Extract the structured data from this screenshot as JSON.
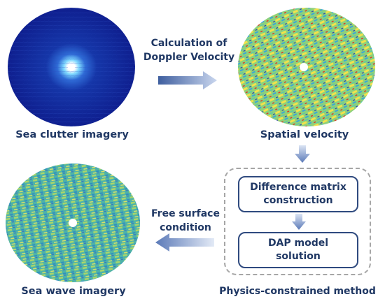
{
  "panels": {
    "sea_clutter": {
      "caption": "Sea clutter imagery"
    },
    "spatial_velocity": {
      "caption": "Spatial velocity"
    },
    "sea_wave": {
      "caption": "Sea wave imagery"
    }
  },
  "arrows": {
    "doppler": {
      "line1": "Calculation of",
      "line2": "Doppler Velocity"
    },
    "free_surface": {
      "line1": "Free surface",
      "line2": "condition"
    }
  },
  "method": {
    "caption": "Physics-constrained method",
    "step1": {
      "line1": "Difference matrix",
      "line2": "construction"
    },
    "step2": {
      "line1": "DAP model",
      "line2": "solution"
    }
  },
  "colors": {
    "text": "#203864",
    "box_border": "#2f4a7f",
    "dashed_frame": "#a6a6a6",
    "arrow_light": "#dbe4f3",
    "arrow_dark": "#5b7ab8"
  }
}
